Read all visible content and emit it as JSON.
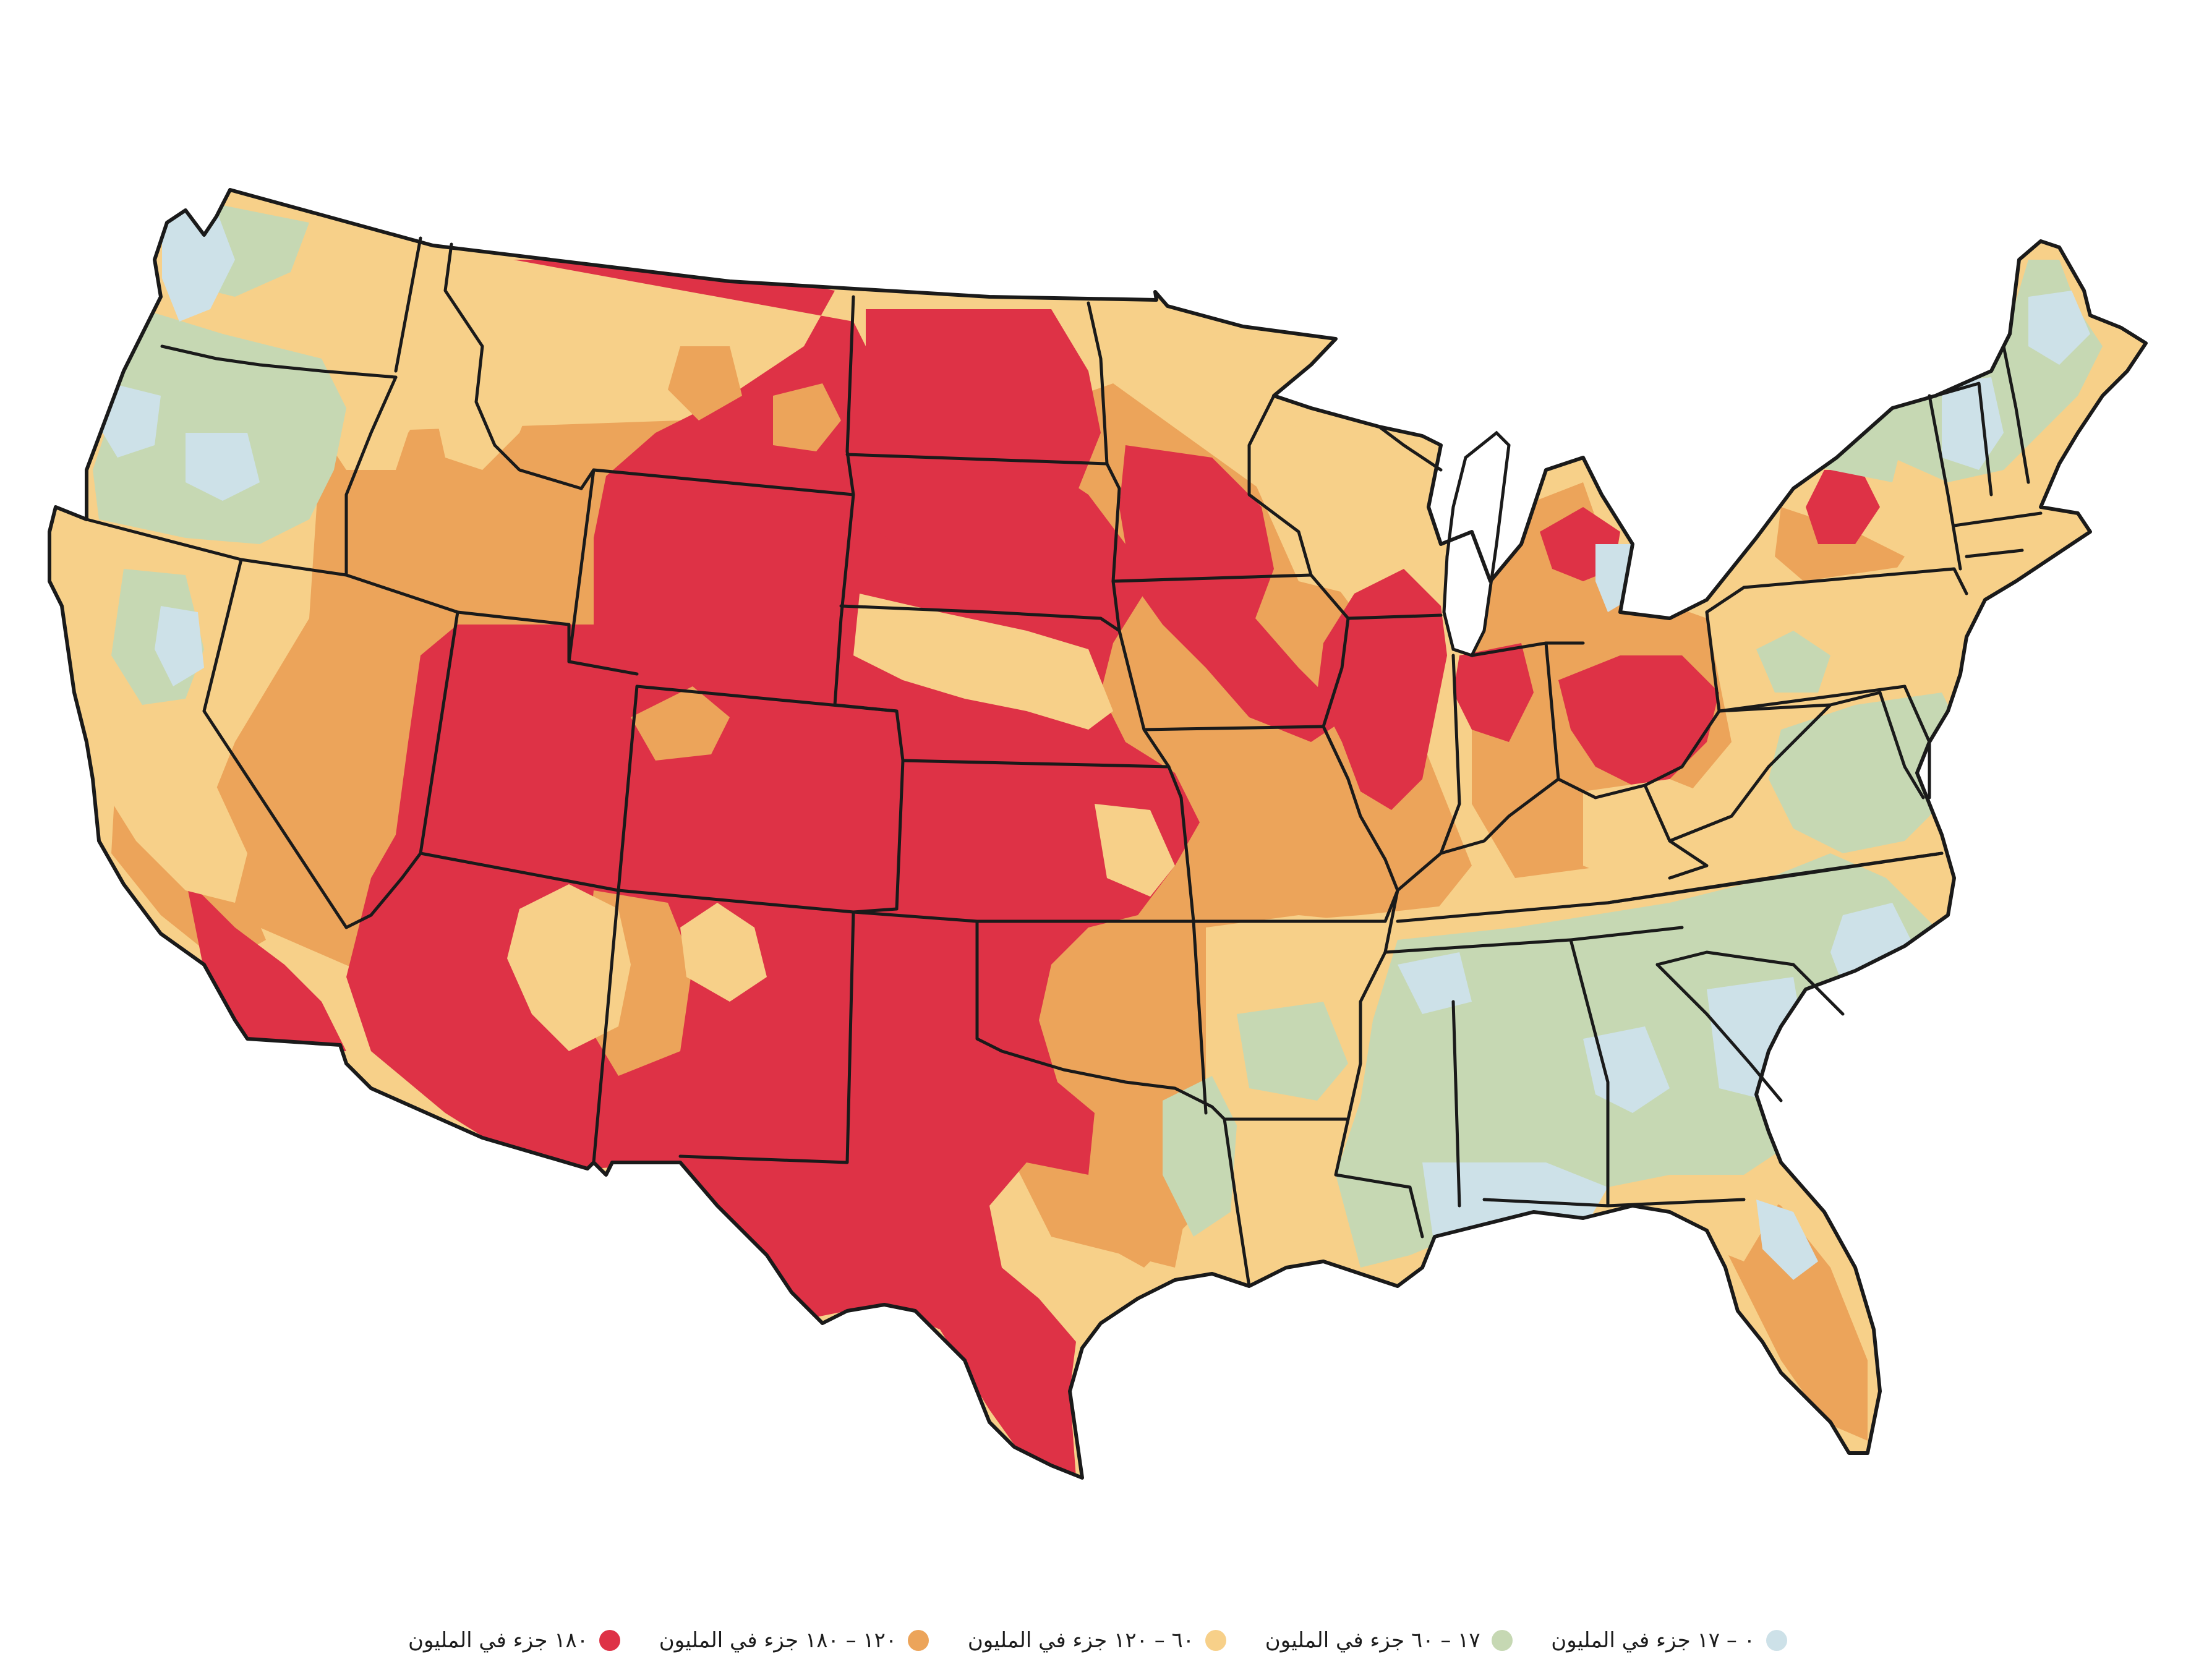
{
  "map": {
    "categories": [
      {
        "key": "c0",
        "label": "٠ – ١٧ جزء في المليون",
        "color": "#cde1e8"
      },
      {
        "key": "c1",
        "label": "١٧ – ٦٠ جزء في المليون",
        "color": "#c6d8b3"
      },
      {
        "key": "c2",
        "label": "٦٠ – ١٢٠ جزء في المليون",
        "color": "#f7d089"
      },
      {
        "key": "c3",
        "label": "١٢٠ – ١٨٠ جزء في المليون",
        "color": "#eca45a"
      },
      {
        "key": "c4",
        "label": "١٨٠ جزء في المليون",
        "color": "#de3246"
      }
    ],
    "border_color": "#1a1a1a"
  }
}
